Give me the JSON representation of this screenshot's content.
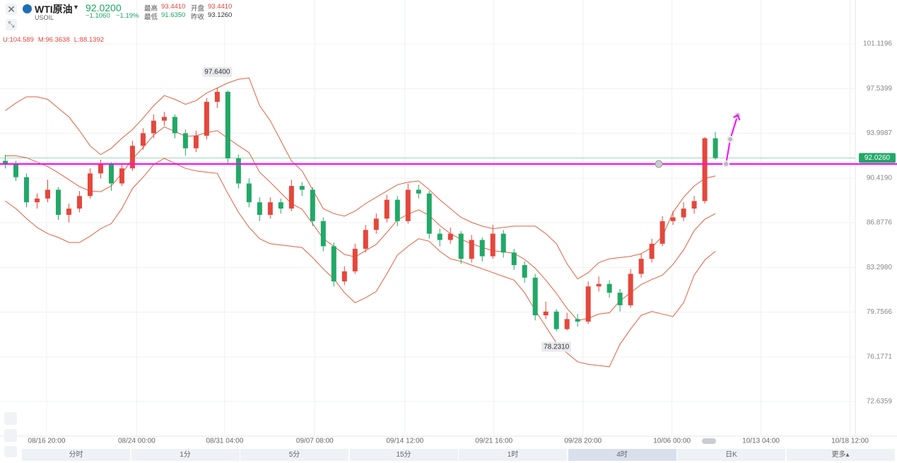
{
  "header": {
    "symbol": "WTI原油",
    "code": "USOIL",
    "price": "92.0200",
    "change": "−1.1060",
    "change_pct": "−1.19%",
    "stats": [
      {
        "label": "最高",
        "value": "93.4410"
      },
      {
        "label": "开盘",
        "value": "93.4410"
      },
      {
        "label": "最低",
        "value": "91.6350"
      },
      {
        "label": "昨收",
        "value": "93.1260"
      }
    ],
    "bollinger": [
      "U:104.589",
      "M:96.3638",
      "L:88.1392"
    ]
  },
  "tabs": {
    "items": [
      "分时",
      "1分",
      "5分",
      "15分",
      "1时",
      "4时",
      "日K",
      "更多▴"
    ],
    "active": 5
  },
  "chart_data": {
    "type": "candlestick",
    "up_color": "#e5473c",
    "down_color": "#21a867",
    "xlim": [
      -0.5,
      80.2
    ],
    "ylim": [
      69.878,
      104.61
    ],
    "xticks": [
      {
        "value": 3.9,
        "label": "08/16 20:00"
      },
      {
        "value": 12.4,
        "label": "08/24 00:00"
      },
      {
        "value": 20.7,
        "label": "08/31 04:00"
      },
      {
        "value": 29.2,
        "label": "09/07 08:00"
      },
      {
        "value": 37.7,
        "label": "09/14 12:00"
      },
      {
        "value": 46.1,
        "label": "09/21 16:00"
      },
      {
        "value": 54.5,
        "label": "09/28 20:00"
      },
      {
        "value": 62.9,
        "label": "10/06 00:00"
      },
      {
        "value": 71.3,
        "label": "10/13 04:00"
      },
      {
        "value": 79.7,
        "label": "10/18 12:00"
      }
    ],
    "yticks": [
      101.1196,
      97.5399,
      93.9987,
      {
        "value": 90.419,
        "label": "90.4190"
      },
      86.8776,
      {
        "value": 83.298,
        "label": "83.2980"
      },
      79.7566,
      76.1771,
      72.6359
    ],
    "grid": true,
    "candles": [
      [
        91.8,
        92.3,
        91.2,
        91.5
      ],
      [
        91.5,
        91.8,
        90.2,
        90.5
      ],
      [
        90.5,
        90.8,
        88.1,
        88.5
      ],
      [
        88.5,
        89.2,
        88.0,
        88.8
      ],
      [
        88.8,
        90.3,
        88.5,
        89.5
      ],
      [
        89.5,
        89.7,
        87.1,
        87.5
      ],
      [
        87.5,
        88.4,
        86.9,
        88.0
      ],
      [
        88.0,
        89.4,
        87.7,
        89.0
      ],
      [
        89.0,
        91.2,
        88.8,
        90.8
      ],
      [
        90.8,
        91.9,
        90.4,
        91.5
      ],
      [
        91.5,
        91.7,
        89.4,
        90.0
      ],
      [
        90.0,
        91.5,
        89.8,
        91.2
      ],
      [
        91.2,
        93.4,
        91.0,
        93.0
      ],
      [
        93.0,
        94.4,
        92.7,
        94.0
      ],
      [
        94.0,
        95.5,
        93.6,
        95.0
      ],
      [
        95.0,
        95.7,
        94.6,
        95.3
      ],
      [
        95.3,
        95.5,
        93.6,
        94.0
      ],
      [
        94.0,
        94.3,
        92.2,
        92.8
      ],
      [
        92.8,
        94.2,
        92.5,
        93.8
      ],
      [
        93.8,
        96.8,
        93.5,
        96.5
      ],
      [
        96.5,
        97.64,
        96.0,
        97.3
      ],
      [
        97.3,
        97.4,
        91.6,
        92.0
      ],
      [
        92.0,
        92.3,
        89.6,
        90.0
      ],
      [
        90.0,
        90.4,
        88.1,
        88.5
      ],
      [
        88.5,
        88.9,
        87.0,
        87.5
      ],
      [
        87.5,
        88.9,
        87.2,
        88.5
      ],
      [
        88.5,
        88.8,
        87.6,
        88.0
      ],
      [
        88.0,
        90.3,
        87.8,
        89.8
      ],
      [
        89.8,
        90.1,
        89.0,
        89.5
      ],
      [
        89.5,
        89.7,
        86.6,
        87.0
      ],
      [
        87.0,
        87.3,
        84.6,
        85.0
      ],
      [
        85.0,
        85.3,
        81.8,
        82.2
      ],
      [
        82.2,
        83.4,
        81.9,
        83.0
      ],
      [
        83.0,
        85.2,
        82.8,
        84.8
      ],
      [
        84.8,
        86.7,
        84.5,
        86.3
      ],
      [
        86.3,
        87.6,
        86.0,
        87.2
      ],
      [
        87.2,
        89.1,
        86.9,
        88.7
      ],
      [
        88.7,
        89.0,
        86.6,
        87.0
      ],
      [
        87.0,
        90.0,
        86.8,
        89.5
      ],
      [
        89.5,
        89.9,
        88.8,
        89.2
      ],
      [
        89.2,
        89.4,
        85.6,
        86.0
      ],
      [
        86.0,
        86.4,
        85.0,
        85.5
      ],
      [
        85.5,
        86.5,
        85.2,
        86.0
      ],
      [
        86.0,
        86.2,
        83.6,
        84.0
      ],
      [
        84.0,
        85.9,
        83.7,
        85.5
      ],
      [
        85.5,
        85.7,
        83.8,
        84.2
      ],
      [
        84.2,
        86.7,
        84.0,
        86.0
      ],
      [
        86.0,
        86.3,
        84.1,
        84.5
      ],
      [
        84.5,
        84.8,
        83.1,
        83.5
      ],
      [
        83.5,
        83.8,
        82.1,
        82.5
      ],
      [
        82.5,
        82.8,
        79.1,
        79.5
      ],
      [
        79.5,
        80.6,
        79.2,
        79.8
      ],
      [
        79.8,
        80.0,
        78.231,
        78.4
      ],
      [
        78.4,
        79.7,
        78.3,
        79.2
      ],
      [
        79.2,
        79.6,
        78.6,
        79.0
      ],
      [
        79.0,
        82.2,
        78.8,
        81.8
      ],
      [
        81.8,
        82.6,
        81.4,
        82.0
      ],
      [
        82.0,
        82.3,
        80.9,
        81.3
      ],
      [
        81.3,
        81.6,
        79.8,
        80.3
      ],
      [
        80.3,
        83.2,
        80.1,
        82.8
      ],
      [
        82.8,
        84.4,
        82.5,
        84.0
      ],
      [
        84.0,
        85.6,
        83.7,
        85.2
      ],
      [
        85.2,
        87.4,
        85.0,
        87.0
      ],
      [
        87.0,
        87.8,
        86.7,
        87.3
      ],
      [
        87.3,
        88.5,
        87.0,
        88.0
      ],
      [
        88.0,
        89.0,
        87.6,
        88.6
      ],
      [
        88.6,
        93.7,
        88.4,
        93.6
      ],
      [
        93.6,
        94.1,
        91.9,
        92.02
      ]
    ],
    "bands": {
      "color": "#e2603f",
      "upper": [
        95.8,
        96.4,
        96.9,
        96.9,
        96.7,
        96.0,
        95.3,
        94.2,
        93.0,
        92.3,
        92.8,
        93.6,
        94.3,
        95.2,
        96.2,
        97.0,
        96.7,
        96.3,
        96.6,
        97.2,
        97.6,
        98.0,
        98.3,
        98.4,
        96.2,
        95.0,
        93.4,
        91.8,
        91.0,
        89.5,
        88.0,
        87.6,
        87.4,
        87.8,
        88.4,
        88.9,
        89.4,
        89.9,
        90.1,
        90.2,
        89.5,
        88.7,
        88.0,
        87.3,
        86.9,
        86.6,
        86.4,
        86.5,
        86.6,
        86.6,
        86.6,
        86.0,
        85.2,
        83.6,
        82.4,
        82.9,
        83.7,
        84.0,
        84.1,
        84.2,
        84.4,
        84.9,
        85.8,
        87.7,
        88.9,
        89.8,
        90.4,
        90.6
      ],
      "middle": [
        92.2,
        92.2,
        92.05,
        91.7,
        91.35,
        90.85,
        90.3,
        89.75,
        89.4,
        89.35,
        89.8,
        90.8,
        91.95,
        92.85,
        93.85,
        94.5,
        94.15,
        93.75,
        93.8,
        94.05,
        94.2,
        93.6,
        93.0,
        92.45,
        90.9,
        90.1,
        89.25,
        88.4,
        87.95,
        86.8,
        85.6,
        85.0,
        84.35,
        84.15,
        84.65,
        85.15,
        86.1,
        87.1,
        87.55,
        87.9,
        87.45,
        86.65,
        86.0,
        85.55,
        85.2,
        84.9,
        84.65,
        84.55,
        84.45,
        83.95,
        83.25,
        82.3,
        81.25,
        80.05,
        79.1,
        79.25,
        79.6,
        79.7,
        80.65,
        81.3,
        81.95,
        82.35,
        82.7,
        83.55,
        84.7,
        86.25,
        87.15,
        87.6
      ],
      "lower": [
        88.6,
        88.0,
        87.2,
        86.5,
        86.0,
        85.7,
        85.3,
        85.3,
        85.8,
        86.4,
        86.8,
        88.0,
        89.6,
        90.5,
        91.5,
        92.0,
        91.6,
        91.2,
        91.0,
        90.9,
        90.8,
        89.2,
        87.7,
        86.5,
        85.6,
        85.2,
        85.1,
        85.0,
        84.9,
        84.1,
        83.2,
        82.4,
        81.3,
        80.5,
        80.9,
        81.4,
        82.8,
        84.3,
        85.0,
        85.6,
        85.4,
        84.6,
        84.0,
        83.8,
        83.5,
        83.2,
        82.9,
        82.6,
        82.3,
        81.3,
        79.9,
        78.6,
        77.3,
        76.5,
        75.8,
        75.6,
        75.5,
        75.4,
        77.2,
        78.4,
        79.5,
        79.8,
        79.6,
        79.4,
        80.5,
        82.7,
        83.9,
        84.6
      ]
    },
    "high_label": {
      "index": 20,
      "value": 97.64,
      "label": "97.6400"
    },
    "low_label": {
      "index": 52,
      "value": 78.231,
      "label": "78.2310"
    },
    "last_price": {
      "value": 92.026,
      "label": "92.0260",
      "color": "#21a867"
    },
    "hline": {
      "value": 91.55,
      "color": "#ff00ff"
    },
    "drawing": {
      "color": "#ff00ff",
      "x": [
        68.0,
        68.4,
        69.1
      ],
      "y": [
        91.55,
        93.52,
        95.43
      ]
    }
  }
}
